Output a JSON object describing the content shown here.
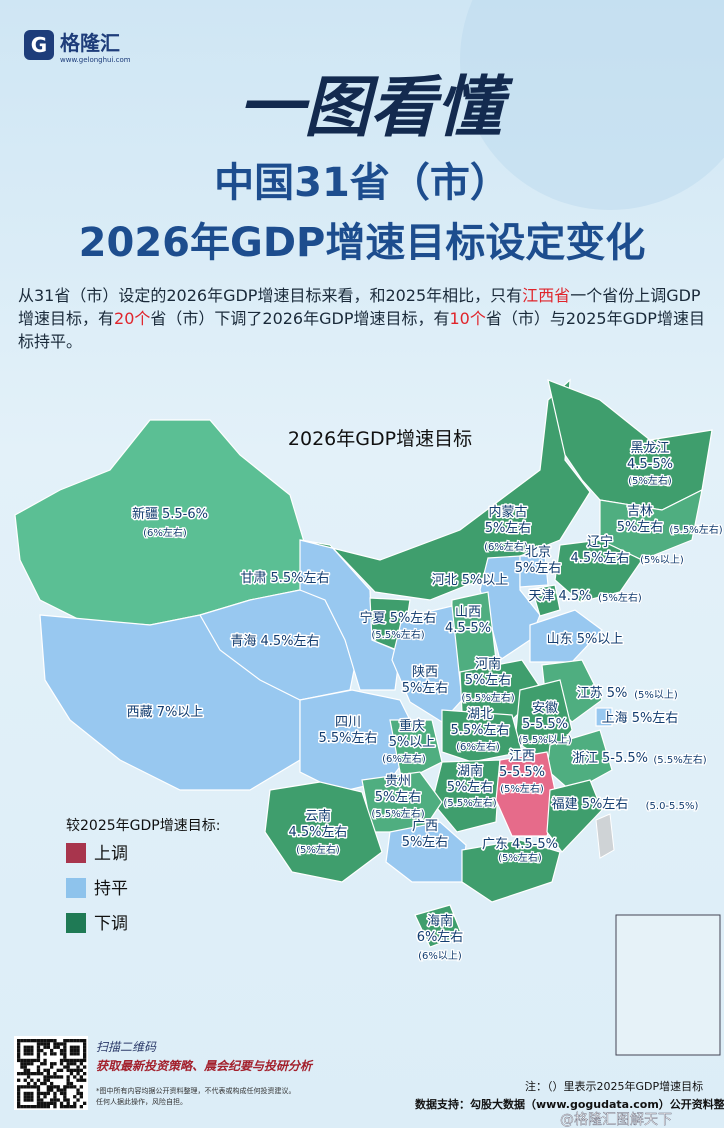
{
  "header": {
    "logo": "格隆汇",
    "url": "www.gelonghui.com",
    "banner": "一图看懂",
    "title": [
      "中国31省（市）",
      "2026年GDP增速目标设定变化"
    ]
  },
  "intro": [
    {
      "text": "从31省（市）设定的2026年GDP增速目标来看，和2025年相比，只有"
    },
    {
      "text": "江西省",
      "color": "#e0242b"
    },
    {
      "text": "一个省份上调GDP增速目标，有"
    },
    {
      "text": "20个",
      "color": "#e0242b"
    },
    {
      "text": "省（市）下调了2026年GDP增速目标，有"
    },
    {
      "text": "10个",
      "color": "#e0242b"
    },
    {
      "text": "省（市）与2025年GDP增速目标持平。"
    }
  ],
  "map": {
    "title": "2026年GDP增速目标",
    "provinces": [
      {
        "name": "新疆",
        "target": "5.5-6%",
        "prev": "(6%左右)",
        "color": "#5bbf94"
      },
      {
        "name": "西藏",
        "target": "7%以上",
        "color": "#98c8f0"
      },
      {
        "name": "青海",
        "target": "4.5%左右",
        "color": "#98c8f0"
      },
      {
        "name": "甘肃",
        "target": "5.5%左右",
        "color": "#98c8f0"
      },
      {
        "name": "内蒙古",
        "target": "5%左右",
        "prev": "(6%左右)",
        "color": "#3f9e6d"
      },
      {
        "name": "黑龙江",
        "target": "4.5-5%",
        "prev": "(5%左右)",
        "color": "#3f9e6d"
      },
      {
        "name": "吉林",
        "target": "5%左右",
        "prev": "(5.5%左右)",
        "color": "#4fae80"
      },
      {
        "name": "辽宁",
        "target": "4.5%左右",
        "prev": "(5%以上)",
        "color": "#3f9e6d"
      },
      {
        "name": "河北",
        "target": "5%以上",
        "color": "#98c8f0"
      },
      {
        "name": "北京",
        "target": "5%左右",
        "color": "#98c8f0"
      },
      {
        "name": "天津",
        "target": "4.5%",
        "prev": "(5%左右)",
        "color": "#3f9e6d"
      },
      {
        "name": "山西",
        "target": "4.5-5%",
        "color": "#4fae80"
      },
      {
        "name": "山东",
        "target": "5%以上",
        "color": "#98c8f0"
      },
      {
        "name": "宁夏",
        "target": "5%左右",
        "prev": "(5.5%左右)",
        "color": "#3f9e6d"
      },
      {
        "name": "陕西",
        "target": "5%左右",
        "color": "#98c8f0"
      },
      {
        "name": "河南",
        "target": "5%左右",
        "prev": "(5.5%左右)",
        "color": "#3f9e6d"
      },
      {
        "name": "江苏",
        "target": "5%",
        "prev": "(5%以上)",
        "color": "#4fae80"
      },
      {
        "name": "安徽",
        "target": "5-5.5%",
        "prev": "(5.5%以上)",
        "color": "#3f9e6d"
      },
      {
        "name": "上海",
        "target": "5%左右",
        "color": "#98c8f0"
      },
      {
        "name": "四川",
        "target": "5.5%左右",
        "color": "#98c8f0"
      },
      {
        "name": "重庆",
        "target": "5%以上",
        "prev": "(6%左右)",
        "color": "#4fae80"
      },
      {
        "name": "湖北",
        "target": "5.5%左右",
        "prev": "(6%左右)",
        "color": "#3f9e6d"
      },
      {
        "name": "浙江",
        "target": "5-5.5%",
        "prev": "(5.5%左右)",
        "color": "#4fae80"
      },
      {
        "name": "湖南",
        "target": "5%左右",
        "prev": "(5.5%左右)",
        "color": "#3f9e6d"
      },
      {
        "name": "江西",
        "target": "5-5.5%",
        "prev": "(5%左右)",
        "color": "#e66b8a"
      },
      {
        "name": "福建",
        "target": "5%左右",
        "prev": "(5.0-5.5%)",
        "color": "#3f9e6d"
      },
      {
        "name": "贵州",
        "target": "5%左右",
        "prev": "(5.5%左右)",
        "color": "#4fae80"
      },
      {
        "name": "云南",
        "target": "4.5%左右",
        "prev": "(5%左右)",
        "color": "#3f9e6d"
      },
      {
        "name": "广西",
        "target": "5%左右",
        "color": "#98c8f0"
      },
      {
        "name": "广东",
        "target": "4.5-5%",
        "prev": "(5%左右)",
        "color": "#3f9e6d"
      },
      {
        "name": "海南",
        "target": "6%左右",
        "prev": "(6%以上)",
        "color": "#3f9e6d"
      }
    ],
    "legend": {
      "title": "较2025年GDP增速目标:",
      "items": [
        {
          "label": "上调",
          "color": "#a8354d"
        },
        {
          "label": "持平",
          "color": "#8ec3ec"
        },
        {
          "label": "下调",
          "color": "#1f7a55"
        }
      ]
    }
  },
  "footer": {
    "qr_caption": "扫描二维码",
    "qr_slogan": "获取最新投资策略、晨会纪要与投研分析",
    "disclaimer": [
      "*图中所有内容均据公开资料整理，不代表或构成任何投资建议。",
      "任何人据此操作，风险自担。"
    ],
    "note": "注：（）里表示2025年GDP增速目标",
    "source": "数据支持：勾股大数据（www.gogudata.com）公开资料整理",
    "watermark": "@格隆汇图解天下"
  }
}
